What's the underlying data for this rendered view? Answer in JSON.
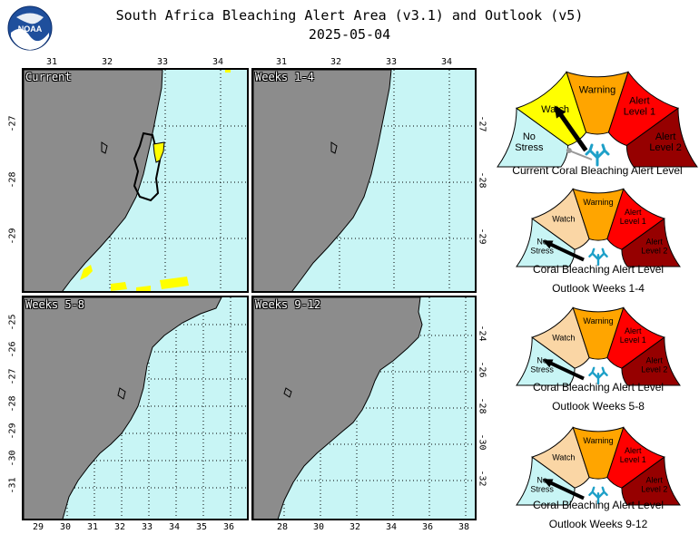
{
  "title": {
    "line1": "South Africa Bleaching Alert Area (v3.1) and Outlook (v5)",
    "line2": "2025-05-04"
  },
  "logo": {
    "text": "NOAA"
  },
  "panels": {
    "current": {
      "label": "Current",
      "top_ticks": [
        "31",
        "32",
        "33",
        "34"
      ],
      "left_ticks": [
        "-27",
        "-28",
        "-29"
      ]
    },
    "weeks_1_4": {
      "label": "Weeks 1-4",
      "top_ticks": [
        "31",
        "32",
        "33",
        "34"
      ],
      "right_ticks": [
        "-27",
        "-28",
        "-29"
      ]
    },
    "weeks_5_8": {
      "label": "Weeks 5-8",
      "bottom_ticks": [
        "29",
        "30",
        "31",
        "32",
        "33",
        "34",
        "35",
        "36"
      ],
      "left_ticks": [
        "-25",
        "-26",
        "-27",
        "-28",
        "-29",
        "-30",
        "-31"
      ]
    },
    "weeks_9_12": {
      "label": "Weeks 9-12",
      "bottom_ticks": [
        "28",
        "30",
        "32",
        "34",
        "36",
        "38"
      ],
      "right_ticks": [
        "-24",
        "-26",
        "-28",
        "-30",
        "-32"
      ]
    }
  },
  "gauge_labels": {
    "no_stress": [
      "No",
      "Stress"
    ],
    "watch": "Watch",
    "warning": "Warning",
    "alert1": [
      "Alert",
      "Level 1"
    ],
    "alert2": [
      "Alert",
      "Level 2"
    ]
  },
  "gauges": [
    {
      "caption1": "Current Coral Bleaching Alert Level",
      "caption2": "",
      "level": "Watch",
      "palette": "current"
    },
    {
      "caption1": "Coral Bleaching Alert Level",
      "caption2": "Outlook Weeks 1-4",
      "level": "No Stress",
      "palette": "outlook"
    },
    {
      "caption1": "Coral Bleaching Alert Level",
      "caption2": "Outlook Weeks 5-8",
      "level": "No Stress",
      "palette": "outlook"
    },
    {
      "caption1": "Coral Bleaching Alert Level",
      "caption2": "Outlook Weeks 9-12",
      "level": "No Stress",
      "palette": "outlook"
    }
  ],
  "colors": {
    "ocean": "#c8f5f5",
    "land": "#8c8c8c",
    "watch_current": "#ffff00",
    "watch_outlook": "#fad6a5",
    "warning": "#ffa500",
    "alert1": "#ff0000",
    "alert2": "#960000",
    "no_stress": "#c8f5f5",
    "coral_icon": "#1ea0c8"
  }
}
